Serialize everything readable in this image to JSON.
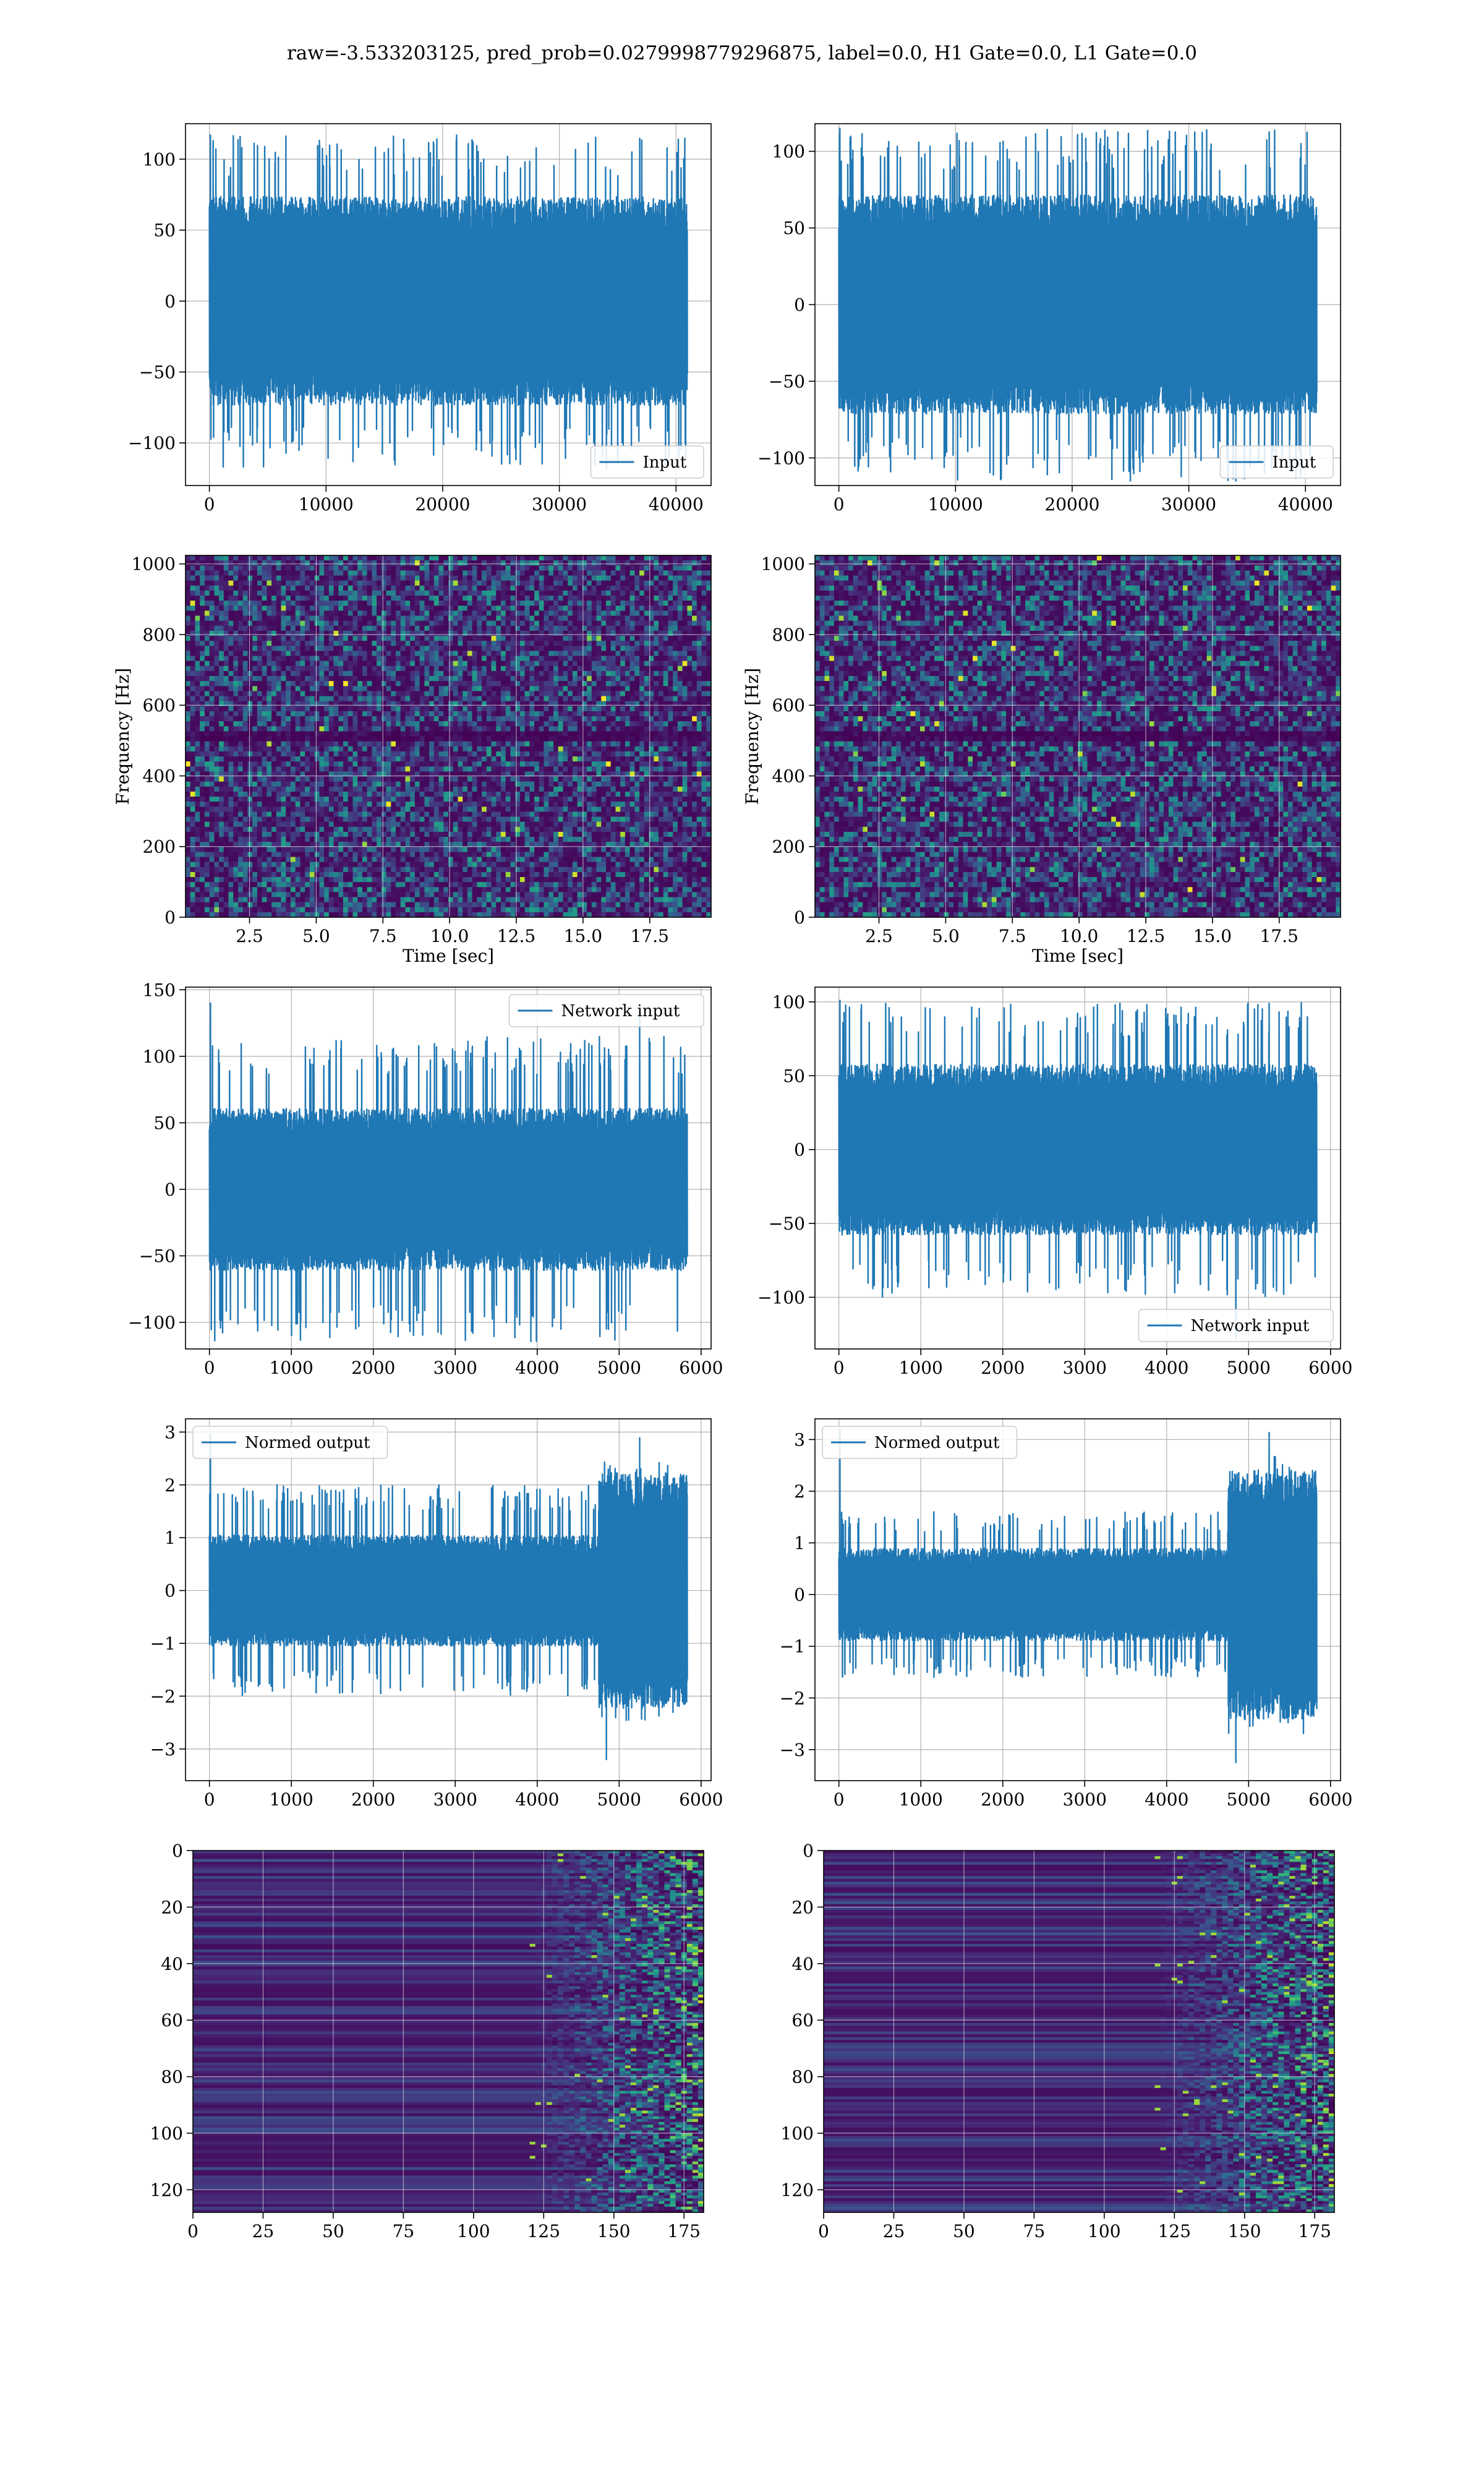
{
  "figure": {
    "title": "raw=-3.533203125, pred_prob=0.0279998779296875, label=0.0, H1 Gate=0.0, L1 Gate=0.0",
    "line_color": "#1f77b4",
    "grid_color": "#b0b0b0",
    "colormap": "viridis"
  },
  "chart_data": [
    {
      "id": "input-h1",
      "type": "line",
      "row": 1,
      "col": 1,
      "x_range": [
        0,
        40960
      ],
      "xlim": [
        -2048,
        43008
      ],
      "ylim": [
        -130,
        125
      ],
      "xticks": [
        0,
        10000,
        20000,
        30000,
        40000
      ],
      "yticks": [
        -100,
        -50,
        0,
        50,
        100
      ],
      "xlabel": "",
      "ylabel": "",
      "series": [
        {
          "name": "Input",
          "amplitude_typical": 70,
          "amplitude_peak": 117,
          "min": -118,
          "max": 117
        }
      ],
      "legend": "lower right",
      "grid": true
    },
    {
      "id": "input-l1",
      "type": "line",
      "row": 1,
      "col": 2,
      "x_range": [
        0,
        40960
      ],
      "xlim": [
        -2048,
        43008
      ],
      "ylim": [
        -118,
        118
      ],
      "xticks": [
        0,
        10000,
        20000,
        30000,
        40000
      ],
      "yticks": [
        -100,
        -50,
        0,
        50,
        100
      ],
      "xlabel": "",
      "ylabel": "",
      "series": [
        {
          "name": "Input",
          "amplitude_typical": 68,
          "amplitude_peak": 115,
          "min": -115,
          "max": 115
        }
      ],
      "legend": "lower right",
      "grid": true
    },
    {
      "id": "spectrogram-h1",
      "type": "heatmap",
      "row": 2,
      "col": 1,
      "xlim": [
        0.1,
        19.8
      ],
      "ylim": [
        0,
        1024
      ],
      "xticks": [
        2.5,
        5.0,
        7.5,
        10.0,
        12.5,
        15.0,
        17.5
      ],
      "yticks": [
        0,
        200,
        400,
        600,
        800,
        1000
      ],
      "xlabel": "Time [sec]",
      "ylabel": "Frequency [Hz]",
      "colormap": "viridis",
      "dark_band_hz": [
        505,
        515
      ],
      "grid": true
    },
    {
      "id": "spectrogram-l1",
      "type": "heatmap",
      "row": 2,
      "col": 2,
      "xlim": [
        0.1,
        19.8
      ],
      "ylim": [
        0,
        1024
      ],
      "xticks": [
        2.5,
        5.0,
        7.5,
        10.0,
        12.5,
        15.0,
        17.5
      ],
      "yticks": [
        0,
        200,
        400,
        600,
        800,
        1000
      ],
      "xlabel": "Time [sec]",
      "ylabel": "Frequency [Hz]",
      "colormap": "viridis",
      "dark_band_hz": [
        505,
        515
      ],
      "grid": true
    },
    {
      "id": "network-input-h1",
      "type": "line",
      "row": 3,
      "col": 1,
      "x_range": [
        0,
        5830
      ],
      "xlim": [
        -292,
        6122
      ],
      "ylim": [
        -120,
        152
      ],
      "xticks": [
        0,
        1000,
        2000,
        3000,
        4000,
        5000,
        6000
      ],
      "yticks": [
        -100,
        -50,
        0,
        50,
        100,
        150
      ],
      "xlabel": "",
      "ylabel": "",
      "series": [
        {
          "name": "Network input",
          "amplitude_typical": 58,
          "amplitude_peak": 115,
          "min": -105,
          "max": 140
        }
      ],
      "legend": "upper right",
      "grid": true
    },
    {
      "id": "network-input-l1",
      "type": "line",
      "row": 3,
      "col": 2,
      "x_range": [
        0,
        5830
      ],
      "xlim": [
        -292,
        6122
      ],
      "ylim": [
        -135,
        110
      ],
      "xticks": [
        0,
        1000,
        2000,
        3000,
        4000,
        5000,
        6000
      ],
      "yticks": [
        -100,
        -50,
        0,
        50,
        100
      ],
      "xlabel": "",
      "ylabel": "",
      "series": [
        {
          "name": "Network input",
          "amplitude_typical": 55,
          "amplitude_peak": 100,
          "min": -128,
          "max": 101
        }
      ],
      "legend": "lower right",
      "grid": true
    },
    {
      "id": "normed-output-h1",
      "type": "line",
      "row": 4,
      "col": 1,
      "x_range": [
        0,
        5830
      ],
      "xlim": [
        -292,
        6122
      ],
      "ylim": [
        -3.6,
        3.25
      ],
      "xticks": [
        0,
        1000,
        2000,
        3000,
        4000,
        5000,
        6000
      ],
      "yticks": [
        -3,
        -2,
        -1,
        0,
        1,
        2,
        3
      ],
      "xlabel": "",
      "ylabel": "",
      "series": [
        {
          "name": "Normed output",
          "amplitude_typical": 1.0,
          "amplitude_peak": 2.0,
          "burst_start": 4750,
          "burst_amplitude": 2.5,
          "min": -3.2,
          "max": 2.95
        }
      ],
      "legend": "upper left",
      "grid": true
    },
    {
      "id": "normed-output-l1",
      "type": "line",
      "row": 4,
      "col": 2,
      "x_range": [
        0,
        5830
      ],
      "xlim": [
        -292,
        6122
      ],
      "ylim": [
        -3.6,
        3.4
      ],
      "xticks": [
        0,
        1000,
        2000,
        3000,
        4000,
        5000,
        6000
      ],
      "yticks": [
        -3,
        -2,
        -1,
        0,
        1,
        2,
        3
      ],
      "xlabel": "",
      "ylabel": "",
      "series": [
        {
          "name": "Normed output",
          "amplitude_typical": 0.85,
          "amplitude_peak": 1.6,
          "burst_start": 4750,
          "burst_amplitude": 2.7,
          "min": -3.25,
          "max": 3.2
        }
      ],
      "legend": "upper left",
      "grid": true
    },
    {
      "id": "feature-map-h1",
      "type": "heatmap",
      "row": 5,
      "col": 1,
      "xlim": [
        0,
        182
      ],
      "ylim": [
        128,
        0
      ],
      "xticks": [
        0,
        25,
        50,
        75,
        100,
        125,
        150,
        175
      ],
      "yticks": [
        0,
        20,
        40,
        60,
        80,
        100,
        120
      ],
      "xlabel": "",
      "ylabel": "",
      "colormap": "viridis",
      "active_from_col": 120,
      "grid": true
    },
    {
      "id": "feature-map-l1",
      "type": "heatmap",
      "row": 5,
      "col": 2,
      "xlim": [
        0,
        182
      ],
      "ylim": [
        128,
        0
      ],
      "xticks": [
        0,
        25,
        50,
        75,
        100,
        125,
        150,
        175
      ],
      "yticks": [
        0,
        20,
        40,
        60,
        80,
        100,
        120
      ],
      "xlabel": "",
      "ylabel": "",
      "colormap": "viridis",
      "active_from_col": 118,
      "grid": true
    }
  ]
}
